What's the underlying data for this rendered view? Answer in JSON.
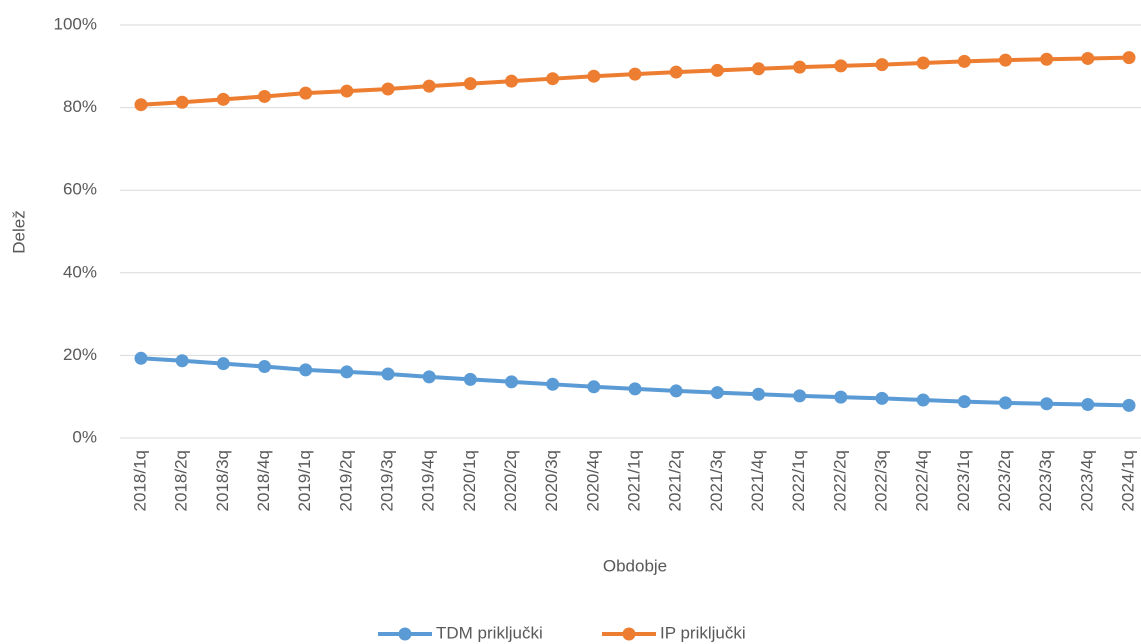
{
  "chart_data": {
    "type": "line",
    "y_label": "Delež",
    "x_label": "Obdobje",
    "categories": [
      "2018/1q",
      "2018/2q",
      "2018/3q",
      "2018/4q",
      "2019/1q",
      "2019/2q",
      "2019/3q",
      "2019/4q",
      "2020/1q",
      "2020/2q",
      "2020/3q",
      "2020/4q",
      "2021/1q",
      "2021/2q",
      "2021/3q",
      "2021/4q",
      "2022/1q",
      "2022/2q",
      "2022/3q",
      "2022/4q",
      "2023/1q",
      "2023/2q",
      "2023/3q",
      "2023/4q",
      "2024/1q"
    ],
    "series": [
      {
        "name": "TDM priključki",
        "color": "#5b9bd5",
        "values": [
          19.3,
          18.7,
          18.0,
          17.3,
          16.5,
          16.0,
          15.5,
          14.8,
          14.2,
          13.6,
          13.0,
          12.4,
          11.9,
          11.4,
          11.0,
          10.6,
          10.2,
          9.9,
          9.6,
          9.2,
          8.8,
          8.5,
          8.3,
          8.1,
          7.9
        ]
      },
      {
        "name": "IP priključki",
        "color": "#ed7d31",
        "values": [
          80.7,
          81.3,
          82.0,
          82.7,
          83.5,
          84.0,
          84.5,
          85.2,
          85.8,
          86.4,
          87.0,
          87.6,
          88.1,
          88.6,
          89.0,
          89.4,
          89.8,
          90.1,
          90.4,
          90.8,
          91.2,
          91.5,
          91.7,
          91.9,
          92.1
        ]
      }
    ],
    "ylim": [
      0,
      100
    ],
    "yticks": [
      {
        "value": 0,
        "label": "0%"
      },
      {
        "value": 20,
        "label": "20%"
      },
      {
        "value": 40,
        "label": "40%"
      },
      {
        "value": 60,
        "label": "60%"
      },
      {
        "value": 80,
        "label": "80%"
      },
      {
        "value": 100,
        "label": "100%"
      }
    ],
    "grid": true,
    "legend": "bottom"
  }
}
